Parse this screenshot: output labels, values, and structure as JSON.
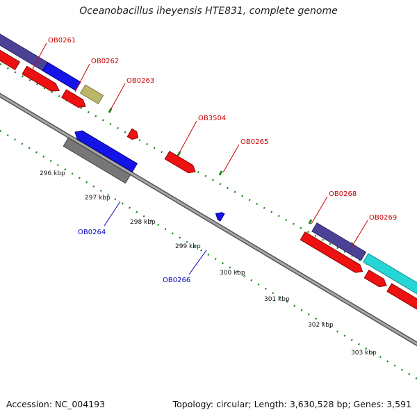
{
  "title": "Oceanobacillus iheyensis HTE831, complete genome",
  "footer": {
    "accession": "Accession: NC_004193",
    "summary": "Topology: circular; Length: 3,630,528 bp; Genes: 3,591"
  },
  "colors": {
    "forward_label": "#cc0000",
    "reverse_label": "#0000bb",
    "backbone": "#888888",
    "ruler": "#1a8a1a"
  },
  "ticks": [
    "296 kbp",
    "297 kbp",
    "298 kbp",
    "299 kbp",
    "300 kbp",
    "301 kbp",
    "302 kbp",
    "303 kbp"
  ],
  "gene_labels": [
    {
      "text": "OB0261",
      "strand": "forward"
    },
    {
      "text": "OB0262",
      "strand": "forward"
    },
    {
      "text": "OB0263",
      "strand": "forward"
    },
    {
      "text": "OB3504",
      "strand": "forward"
    },
    {
      "text": "OB0265",
      "strand": "forward"
    },
    {
      "text": "OB0268",
      "strand": "forward"
    },
    {
      "text": "OB0269",
      "strand": "forward"
    },
    {
      "text": "OB0264",
      "strand": "reverse"
    },
    {
      "text": "OB0266",
      "strand": "reverse"
    }
  ]
}
